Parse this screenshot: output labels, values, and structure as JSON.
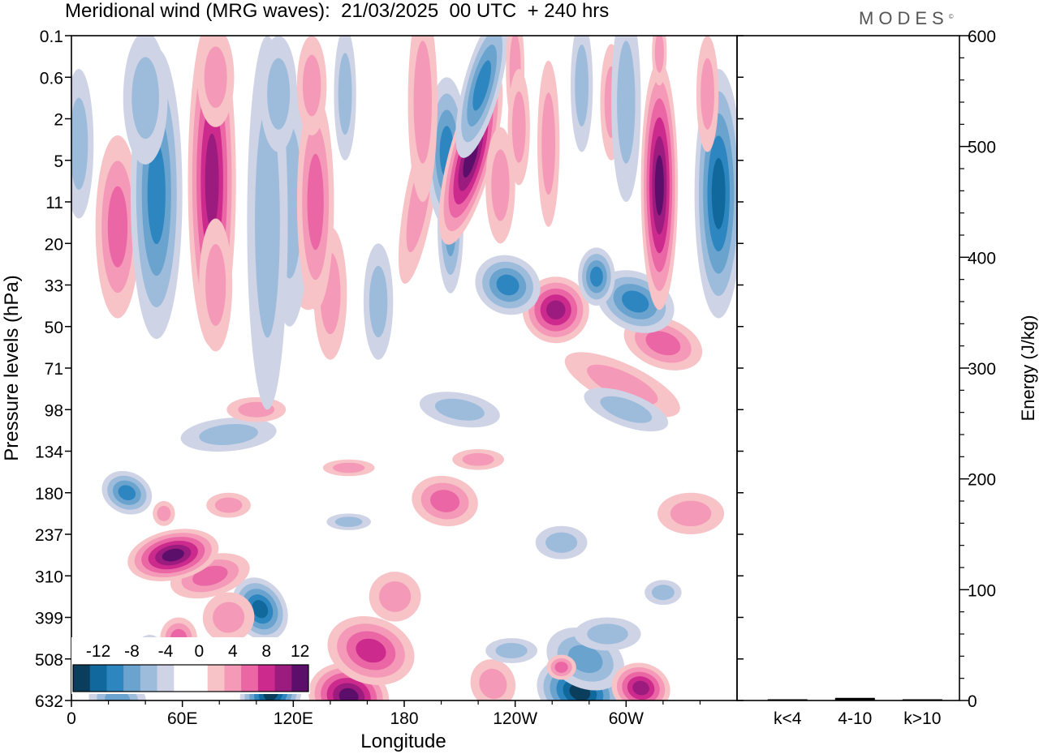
{
  "header": {
    "title": "Meridional wind (MRG waves):  21/03/2025  00 UTC  + 240 hrs",
    "logo": "MODES",
    "logo_mark": "©"
  },
  "chart_data": [
    {
      "type": "heatmap",
      "xlabel": "Longitude",
      "ylabel": "Pressure levels (hPa)",
      "x_ticks": [
        "0",
        "60E",
        "120E",
        "180",
        "120W",
        "60W"
      ],
      "y_ticks": [
        "0.1",
        "0.6",
        "2",
        "5",
        "11",
        "20",
        "33",
        "50",
        "71",
        "98",
        "134",
        "180",
        "237",
        "310",
        "399",
        "508",
        "632"
      ],
      "xlim": [
        0,
        360
      ],
      "colorbar": {
        "labels": [
          "-12",
          "-8",
          "-4",
          "0",
          "4",
          "8",
          "12"
        ],
        "colors": [
          "#0b3d5c",
          "#10689c",
          "#2e86c1",
          "#6ba3cf",
          "#9dbcdc",
          "#cfd3e6",
          "#ffffff",
          "#ffffff",
          "#f7c3c7",
          "#f49ab8",
          "#ea66a4",
          "#cc2a8c",
          "#9b1b7e",
          "#5b0e6a"
        ]
      },
      "blobs": [
        {
          "x": 25,
          "y": 16,
          "rx": 16,
          "ry": 0.6,
          "v": -6,
          "angle": 25
        },
        {
          "x": 40,
          "y": 15,
          "rx": 9,
          "ry": 0.6,
          "v": -5,
          "angle": 20
        },
        {
          "x": 58,
          "y": 14.5,
          "rx": 10,
          "ry": 0.5,
          "v": 5
        },
        {
          "x": 70,
          "y": 15.2,
          "rx": 9,
          "ry": 0.7,
          "v": 8,
          "angle": -30
        },
        {
          "x": 108,
          "y": 15.8,
          "rx": 16,
          "ry": 0.9,
          "v": -13,
          "angle": 25
        },
        {
          "x": 102,
          "y": 13.8,
          "rx": 14,
          "ry": 0.8,
          "v": -10,
          "angle": -30
        },
        {
          "x": 150,
          "y": 15.9,
          "rx": 22,
          "ry": 0.8,
          "v": 14,
          "angle": 15
        },
        {
          "x": 162,
          "y": 14.8,
          "rx": 24,
          "ry": 0.8,
          "v": 8,
          "angle": 18
        },
        {
          "x": 175,
          "y": 13.5,
          "rx": 14,
          "ry": 0.6,
          "v": 4
        },
        {
          "x": 75,
          "y": 13.0,
          "rx": 22,
          "ry": 0.5,
          "v": 6,
          "angle": -15
        },
        {
          "x": 55,
          "y": 12.5,
          "rx": 25,
          "ry": 0.6,
          "v": 11,
          "angle": -12
        },
        {
          "x": 85,
          "y": 14.0,
          "rx": 14,
          "ry": 0.6,
          "v": 4,
          "angle": -20
        },
        {
          "x": 30,
          "y": 11.0,
          "rx": 14,
          "ry": 0.5,
          "v": -7,
          "angle": 25
        },
        {
          "x": 50,
          "y": 11.5,
          "rx": 6,
          "ry": 0.3,
          "v": 4
        },
        {
          "x": 85,
          "y": 11.3,
          "rx": 12,
          "ry": 0.3,
          "v": 4
        },
        {
          "x": 150,
          "y": 11.7,
          "rx": 12,
          "ry": 0.2,
          "v": -4
        },
        {
          "x": 202,
          "y": 11.2,
          "rx": 18,
          "ry": 0.6,
          "v": 5,
          "angle": 10
        },
        {
          "x": 228,
          "y": 15.6,
          "rx": 12,
          "ry": 0.6,
          "v": 4,
          "angle": -20
        },
        {
          "x": 238,
          "y": 14.8,
          "rx": 14,
          "ry": 0.3,
          "v": -4
        },
        {
          "x": 275,
          "y": 15.8,
          "rx": 24,
          "ry": 0.8,
          "v": -11,
          "angle": 22
        },
        {
          "x": 278,
          "y": 15.0,
          "rx": 22,
          "ry": 0.7,
          "v": -5,
          "angle": 25
        },
        {
          "x": 308,
          "y": 15.7,
          "rx": 16,
          "ry": 0.6,
          "v": 9,
          "angle": 15
        },
        {
          "x": 265,
          "y": 15.2,
          "rx": 8,
          "ry": 0.3,
          "v": 5
        },
        {
          "x": 290,
          "y": 14.4,
          "rx": 18,
          "ry": 0.4,
          "v": -4
        },
        {
          "x": 335,
          "y": 11.5,
          "rx": 18,
          "ry": 0.5,
          "v": 4
        },
        {
          "x": 265,
          "y": 12.2,
          "rx": 14,
          "ry": 0.4,
          "v": -4
        },
        {
          "x": 320,
          "y": 13.4,
          "rx": 10,
          "ry": 0.3,
          "v": -4
        },
        {
          "x": 85,
          "y": 9.6,
          "rx": 26,
          "ry": 0.4,
          "v": -4,
          "angle": -5
        },
        {
          "x": 100,
          "y": 9.0,
          "rx": 16,
          "ry": 0.3,
          "v": 4
        },
        {
          "x": 150,
          "y": 10.4,
          "rx": 14,
          "ry": 0.2,
          "v": 4
        },
        {
          "x": 220,
          "y": 10.2,
          "rx": 14,
          "ry": 0.25,
          "v": 4
        },
        {
          "x": 210,
          "y": 9.0,
          "rx": 22,
          "ry": 0.4,
          "v": -4,
          "angle": 10
        },
        {
          "x": 298,
          "y": 8.4,
          "rx": 34,
          "ry": 0.5,
          "v": 4,
          "angle": 25
        },
        {
          "x": 300,
          "y": 9.0,
          "rx": 24,
          "ry": 0.4,
          "v": -4,
          "angle": 20
        },
        {
          "x": 320,
          "y": 7.4,
          "rx": 22,
          "ry": 0.6,
          "v": 6,
          "angle": 20
        },
        {
          "x": 305,
          "y": 6.4,
          "rx": 22,
          "ry": 0.7,
          "v": -7,
          "angle": 25
        },
        {
          "x": 262,
          "y": 6.6,
          "rx": 18,
          "ry": 0.8,
          "v": 10,
          "angle": 35
        },
        {
          "x": 236,
          "y": 6.0,
          "rx": 18,
          "ry": 0.7,
          "v": -8,
          "angle": 25
        },
        {
          "x": 284,
          "y": 5.8,
          "rx": 10,
          "ry": 0.7,
          "v": -8
        },
        {
          "x": 140,
          "y": 6.2,
          "rx": 9,
          "ry": 1.6,
          "v": 3
        },
        {
          "x": 128,
          "y": 5.2,
          "rx": 12,
          "ry": 1.4,
          "v": 4
        },
        {
          "x": 118,
          "y": 4.0,
          "rx": 11,
          "ry": 3.0,
          "v": -3
        },
        {
          "x": 132,
          "y": 4.0,
          "rx": 10,
          "ry": 2.6,
          "v": 5
        },
        {
          "x": 166,
          "y": 6.4,
          "rx": 8,
          "ry": 1.4,
          "v": -4
        },
        {
          "x": 188,
          "y": 4.0,
          "rx": 8,
          "ry": 2.0,
          "v": 4,
          "angle": 10
        },
        {
          "x": 205,
          "y": 4.6,
          "rx": 7,
          "ry": 1.6,
          "v": -5
        },
        {
          "x": 203,
          "y": 2.8,
          "rx": 11,
          "ry": 1.8,
          "v": -8
        },
        {
          "x": 216,
          "y": 2.9,
          "rx": 12,
          "ry": 2.2,
          "v": 12,
          "angle": 15
        },
        {
          "x": 222,
          "y": 1.2,
          "rx": 10,
          "ry": 1.8,
          "v": -8,
          "angle": 15
        },
        {
          "x": 232,
          "y": 3.6,
          "rx": 8,
          "ry": 1.4,
          "v": 4
        },
        {
          "x": 190,
          "y": 1.6,
          "rx": 8,
          "ry": 2.4,
          "v": 4
        },
        {
          "x": 240,
          "y": 0.8,
          "rx": 5,
          "ry": 1.4,
          "v": 4
        },
        {
          "x": 258,
          "y": 2.6,
          "rx": 6,
          "ry": 2.0,
          "v": 4
        },
        {
          "x": 242,
          "y": 2.2,
          "rx": 6,
          "ry": 1.4,
          "v": 4
        },
        {
          "x": 25,
          "y": 4.6,
          "rx": 12,
          "ry": 2.2,
          "v": 6
        },
        {
          "x": 46,
          "y": 3.8,
          "rx": 14,
          "ry": 3.5,
          "v": -8
        },
        {
          "x": 76,
          "y": 3.5,
          "rx": 13,
          "ry": 4.0,
          "v": 9
        },
        {
          "x": 78,
          "y": 6.0,
          "rx": 9,
          "ry": 1.6,
          "v": 4
        },
        {
          "x": 106,
          "y": 4.5,
          "rx": 11,
          "ry": 4.5,
          "v": -4
        },
        {
          "x": 4,
          "y": 2.6,
          "rx": 8,
          "ry": 1.8,
          "v": -4
        },
        {
          "x": 40,
          "y": 1.5,
          "rx": 12,
          "ry": 1.6,
          "v": -4
        },
        {
          "x": 78,
          "y": 1.0,
          "rx": 10,
          "ry": 1.2,
          "v": 4
        },
        {
          "x": 112,
          "y": 1.4,
          "rx": 10,
          "ry": 1.4,
          "v": -4
        },
        {
          "x": 130,
          "y": 1.2,
          "rx": 8,
          "ry": 1.2,
          "v": 4
        },
        {
          "x": 148,
          "y": 1.4,
          "rx": 6,
          "ry": 1.6,
          "v": -4
        },
        {
          "x": 276,
          "y": 1.2,
          "rx": 6,
          "ry": 1.6,
          "v": -4
        },
        {
          "x": 292,
          "y": 1.6,
          "rx": 6,
          "ry": 1.4,
          "v": 4
        },
        {
          "x": 318,
          "y": 3.6,
          "rx": 10,
          "ry": 3.0,
          "v": 11
        },
        {
          "x": 350,
          "y": 3.8,
          "rx": 13,
          "ry": 3.0,
          "v": -9
        },
        {
          "x": 344,
          "y": 1.4,
          "rx": 6,
          "ry": 1.4,
          "v": 4
        },
        {
          "x": 300,
          "y": 1.6,
          "rx": 8,
          "ry": 2.4,
          "v": -4
        },
        {
          "x": 318,
          "y": 0.4,
          "rx": 4,
          "ry": 0.8,
          "v": 4
        }
      ]
    },
    {
      "type": "bar",
      "ylabel": "Energy (J/kg)",
      "categories": [
        "k<4",
        "4-10",
        "k>10"
      ],
      "values": [
        0,
        2,
        0
      ],
      "ylim": [
        0,
        600
      ],
      "y_ticks": [
        "0",
        "100",
        "200",
        "300",
        "400",
        "500",
        "600"
      ]
    }
  ]
}
